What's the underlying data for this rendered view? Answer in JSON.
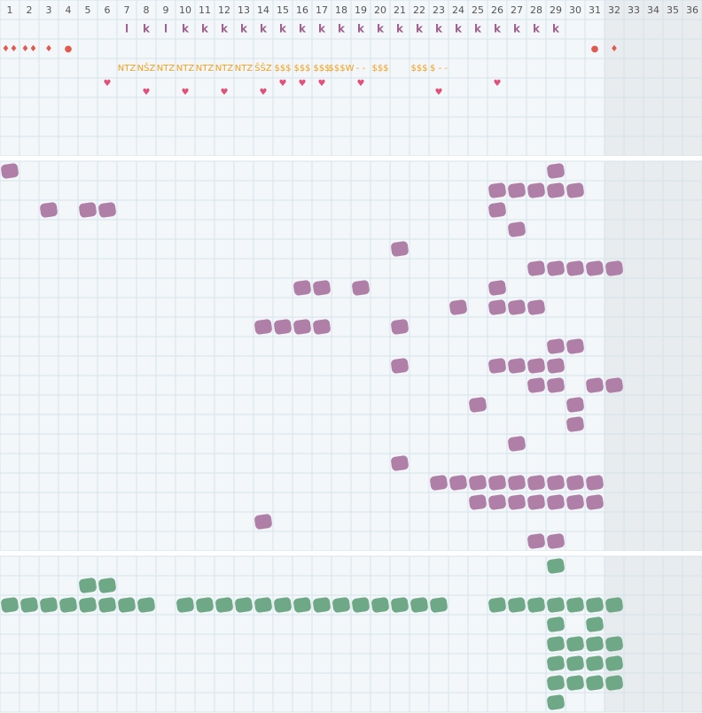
{
  "header": {
    "columns": [
      1,
      2,
      3,
      4,
      5,
      6,
      7,
      8,
      9,
      10,
      11,
      12,
      13,
      14,
      15,
      16,
      17,
      18,
      19,
      20,
      21,
      22,
      23,
      24,
      25,
      26,
      27,
      28,
      29,
      30,
      31,
      32,
      33,
      34,
      35,
      36
    ],
    "shaded_from_column": 32
  },
  "top": {
    "rows": 7,
    "letters": [
      {
        "col": 7,
        "text": "l"
      },
      {
        "col": 8,
        "text": "k"
      },
      {
        "col": 9,
        "text": "l"
      },
      {
        "col": 10,
        "text": "k"
      },
      {
        "col": 11,
        "text": "k"
      },
      {
        "col": 12,
        "text": "k"
      },
      {
        "col": 13,
        "text": "k"
      },
      {
        "col": 14,
        "text": "k"
      },
      {
        "col": 15,
        "text": "k"
      },
      {
        "col": 16,
        "text": "k"
      },
      {
        "col": 17,
        "text": "k"
      },
      {
        "col": 18,
        "text": "k"
      },
      {
        "col": 19,
        "text": "k"
      },
      {
        "col": 20,
        "text": "k"
      },
      {
        "col": 21,
        "text": "k"
      },
      {
        "col": 22,
        "text": "k"
      },
      {
        "col": 23,
        "text": "k"
      },
      {
        "col": 24,
        "text": "k"
      },
      {
        "col": 25,
        "text": "k"
      },
      {
        "col": 26,
        "text": "k"
      },
      {
        "col": 27,
        "text": "k"
      },
      {
        "col": 28,
        "text": "k"
      },
      {
        "col": 29,
        "text": "k"
      }
    ],
    "symbols": [
      {
        "col": 1,
        "text": "♦♦"
      },
      {
        "col": 2,
        "text": "♦♦"
      },
      {
        "col": 3,
        "text": "♦"
      },
      {
        "col": 4,
        "text": "●"
      },
      {
        "col": 31,
        "text": "●"
      },
      {
        "col": 32,
        "text": "♦"
      }
    ],
    "codes": [
      {
        "col": 7,
        "text": "NTZ"
      },
      {
        "col": 8,
        "text": "NŠZ"
      },
      {
        "col": 9,
        "text": "NTZ"
      },
      {
        "col": 10,
        "text": "NTZ"
      },
      {
        "col": 11,
        "text": "NTZ"
      },
      {
        "col": 12,
        "text": "NTZ"
      },
      {
        "col": 13,
        "text": "NTZ"
      },
      {
        "col": 14,
        "text": "ŠŠZ"
      },
      {
        "col": 15,
        "text": "$$$"
      },
      {
        "col": 16,
        "text": "$$$"
      },
      {
        "col": 17,
        "text": "$$$"
      },
      {
        "col": 18,
        "text": "$$$W"
      },
      {
        "col": 19,
        "text": "- -"
      },
      {
        "col": 20,
        "text": "$$$"
      },
      {
        "col": 22,
        "text": "$$$"
      },
      {
        "col": 23,
        "text": "$ - -"
      }
    ],
    "hearts_upper": [
      {
        "col": 6,
        "text": "♥"
      },
      {
        "col": 15,
        "text": "♥"
      },
      {
        "col": 16,
        "text": "♥"
      },
      {
        "col": 17,
        "text": "♥"
      },
      {
        "col": 19,
        "text": "♥"
      },
      {
        "col": 26,
        "text": "♥"
      }
    ],
    "hearts_lower": [
      {
        "col": 8,
        "text": "♥"
      },
      {
        "col": 10,
        "text": "♥"
      },
      {
        "col": 12,
        "text": "♥"
      },
      {
        "col": 14,
        "text": "♥"
      },
      {
        "col": 23,
        "text": "♥"
      }
    ]
  },
  "middle": {
    "color": "#b07fa8",
    "rows": [
      [
        1,
        29
      ],
      [
        26,
        27,
        28,
        29,
        30
      ],
      [
        3,
        5,
        6,
        26
      ],
      [
        27
      ],
      [
        21
      ],
      [
        28,
        29,
        30,
        31,
        32
      ],
      [
        16,
        17,
        19,
        26
      ],
      [
        24,
        26,
        27,
        28
      ],
      [
        14,
        15,
        16,
        17,
        21
      ],
      [
        29,
        30
      ],
      [
        21,
        26,
        27,
        28,
        29
      ],
      [
        28,
        29,
        31,
        32
      ],
      [
        25,
        30
      ],
      [
        30
      ],
      [
        27
      ],
      [
        21
      ],
      [
        23,
        24,
        25,
        26,
        27,
        28,
        29,
        30,
        31
      ],
      [
        25,
        26,
        27,
        28,
        29,
        30,
        31
      ],
      [
        14
      ],
      [
        28,
        29
      ]
    ]
  },
  "bottom": {
    "color": "#6fa886",
    "rows": [
      [
        29
      ],
      [
        5,
        6
      ],
      [
        1,
        2,
        3,
        4,
        5,
        6,
        7,
        8,
        10,
        11,
        12,
        13,
        14,
        15,
        16,
        17,
        18,
        19,
        20,
        21,
        22,
        23,
        26,
        27,
        28,
        29,
        30,
        31,
        32
      ],
      [
        29,
        31
      ],
      [
        29,
        30,
        31,
        32
      ],
      [
        29,
        30,
        31,
        32
      ],
      [
        29,
        30,
        31,
        32
      ],
      [
        29
      ]
    ]
  }
}
